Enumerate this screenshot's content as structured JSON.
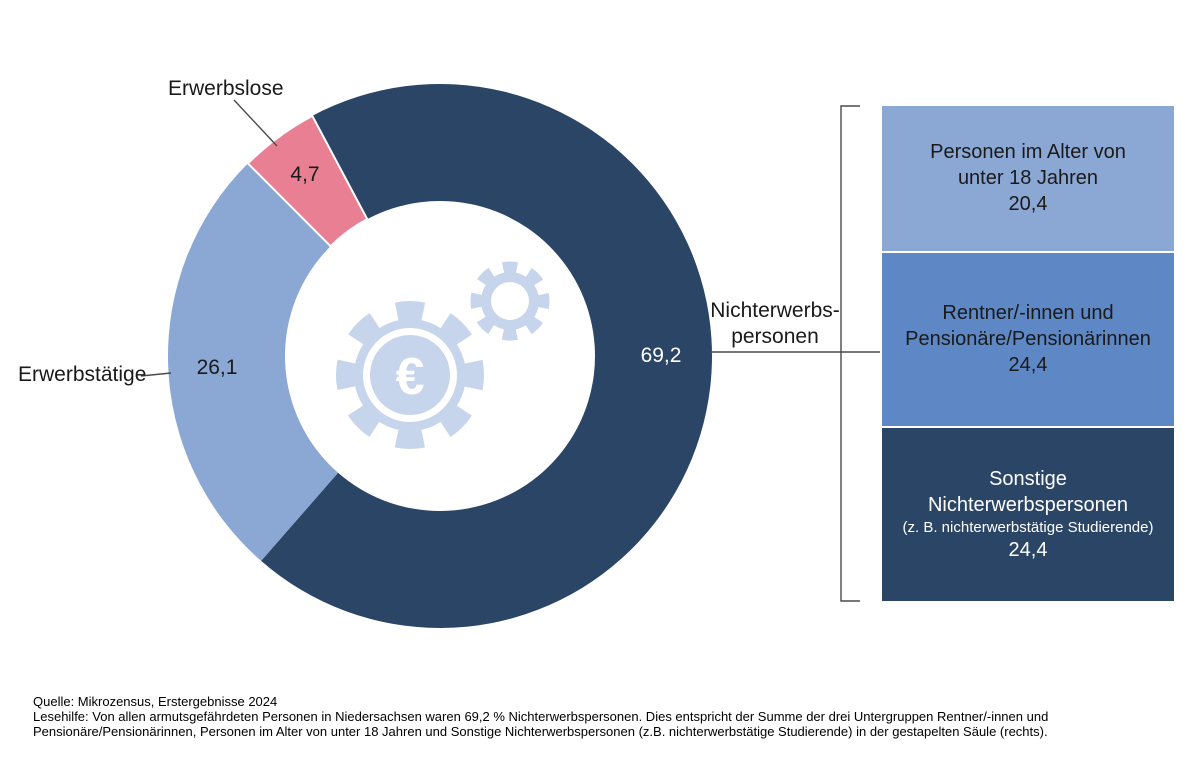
{
  "chart_data": {
    "type": "pie",
    "subtype": "donut-with-stacked-bar-breakout",
    "unit": "%",
    "donut": {
      "start_angle_deg": -28,
      "segments": [
        {
          "label": "Nichterwerbspersonen",
          "value": 69.2,
          "display": "69,2",
          "color": "#2b4566",
          "value_color": "#ffffff"
        },
        {
          "label": "Erwerbstätige",
          "value": 26.1,
          "display": "26,1",
          "color": "#8ba7d3",
          "value_color": "#1a1a1a"
        },
        {
          "label": "Erwerbslose",
          "value": 4.7,
          "display": "4,7",
          "color": "#e87f93",
          "value_color": "#1a1a1a",
          "white_border": true
        }
      ]
    },
    "stacked_bar": {
      "breakout_of": "Nichterwerbspersonen",
      "segments": [
        {
          "label": "Personen im Alter von unter 18 Jahren",
          "label_line1": "Personen im Alter von",
          "label_line2": "unter 18 Jahren",
          "value": 20.4,
          "display": "20,4",
          "color": "#8ba7d3",
          "text_color": "#1a1a1a"
        },
        {
          "label": "Rentner/-innen und Pensionäre/Pensionärinnen",
          "label_line1": "Rentner/-innen und",
          "label_line2": "Pensionäre/Pensionärinnen",
          "value": 24.4,
          "display": "24,4",
          "color": "#5e88c5",
          "text_color": "#1a1a1a"
        },
        {
          "label": "Sonstige Nichterwerbspersonen (z. B. nichterwerbstätige Studierende)",
          "label_line1": "Sonstige Nichterwerbspersonen",
          "label_line2": "(z. B. nichterwerbstätige Studierende)",
          "value": 24.4,
          "display": "24,4",
          "color": "#2b4566",
          "text_color": "#ffffff"
        }
      ]
    }
  },
  "labels": {
    "nichterwerbs_line1": "Nichterwerbs-",
    "nichterwerbs_line2": "personen"
  },
  "icon": {
    "name": "euro-gears-icon",
    "symbol": "€",
    "color": "#c7d5ec"
  },
  "footer": {
    "quelle": "Quelle: Mikrozensus, Erstergebnisse 2024",
    "lesehilfe": "Lesehilfe: Von allen armutsgefährdeten Personen in Niedersachsen waren 69,2 % Nichterwerbspersonen. Dies entspricht der Summe der drei Untergruppen Rentner/-innen und Pensionäre/Pensionärinnen, Personen im Alter von unter 18 Jahren und Sonstige Nichterwerbspersonen (z.B. nichterwerbstätige Studierende) in der gestapelten Säule (rechts)."
  }
}
